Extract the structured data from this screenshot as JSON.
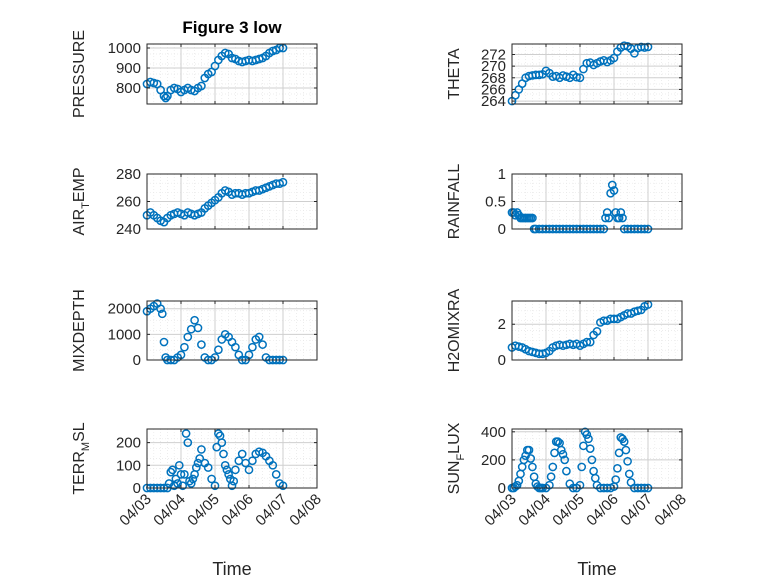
{
  "figure": {
    "title": "Figure 3 low",
    "xlabel": "Time"
  },
  "x_ticks": [
    "04/03",
    "04/04",
    "04/05",
    "04/06",
    "04/07",
    "04/08"
  ],
  "colors": {
    "marker": "#0072BD",
    "axis": "#262626",
    "grid": "#cfcfcf"
  },
  "chart_data": [
    {
      "type": "scatter",
      "ylabel": "PRESSURE",
      "title": "Figure 3 low",
      "xlim": [
        0,
        5
      ],
      "ylim": [
        720,
        1020
      ],
      "yticks": [
        800,
        900,
        1000
      ],
      "x": [
        0,
        0.1,
        0.2,
        0.3,
        0.4,
        0.5,
        0.55,
        0.6,
        0.7,
        0.8,
        0.9,
        1.0,
        1.1,
        1.2,
        1.3,
        1.4,
        1.5,
        1.6,
        1.7,
        1.8,
        1.9,
        2.0,
        2.1,
        2.2,
        2.3,
        2.4,
        2.5,
        2.6,
        2.7,
        2.8,
        2.9,
        3.0,
        3.1,
        3.2,
        3.3,
        3.4,
        3.5,
        3.6,
        3.7,
        3.8,
        3.9,
        4.0
      ],
      "y": [
        820,
        830,
        825,
        820,
        790,
        760,
        750,
        760,
        790,
        800,
        795,
        780,
        790,
        800,
        790,
        785,
        800,
        810,
        850,
        870,
        880,
        910,
        940,
        960,
        975,
        970,
        950,
        945,
        935,
        930,
        935,
        940,
        935,
        940,
        945,
        950,
        960,
        975,
        985,
        990,
        1000,
        1000
      ]
    },
    {
      "type": "scatter",
      "ylabel": "THETA",
      "xlim": [
        0,
        5
      ],
      "ylim": [
        263.5,
        273.8
      ],
      "yticks": [
        264,
        266,
        268,
        270,
        272
      ],
      "x": [
        0,
        0.1,
        0.2,
        0.3,
        0.4,
        0.5,
        0.6,
        0.7,
        0.8,
        0.9,
        1.0,
        1.1,
        1.2,
        1.3,
        1.4,
        1.5,
        1.6,
        1.7,
        1.8,
        1.9,
        2.0,
        2.1,
        2.2,
        2.3,
        2.4,
        2.5,
        2.6,
        2.7,
        2.8,
        2.9,
        3.0,
        3.1,
        3.2,
        3.3,
        3.4,
        3.5,
        3.6,
        3.7,
        3.8,
        3.9,
        4.0
      ],
      "y": [
        264,
        265,
        266,
        267,
        268,
        268.3,
        268.4,
        268.5,
        268.5,
        268.6,
        269.2,
        268.8,
        268.2,
        268.3,
        268,
        268.4,
        268.2,
        268,
        268.5,
        268.1,
        268,
        269.5,
        270.5,
        270.6,
        270.2,
        270.5,
        270.8,
        271,
        270.7,
        271,
        271.4,
        272.5,
        273.2,
        273.5,
        273.4,
        273,
        272.2,
        273.1,
        273.3,
        273.2,
        273.3
      ]
    },
    {
      "type": "scatter",
      "ylabel": "AIR_TEMP",
      "xlim": [
        0,
        5
      ],
      "ylim": [
        240,
        280
      ],
      "yticks": [
        240,
        260,
        280
      ],
      "x": [
        0,
        0.1,
        0.2,
        0.3,
        0.4,
        0.5,
        0.6,
        0.7,
        0.8,
        0.9,
        1.0,
        1.1,
        1.2,
        1.3,
        1.4,
        1.5,
        1.6,
        1.7,
        1.8,
        1.9,
        2.0,
        2.1,
        2.2,
        2.3,
        2.4,
        2.5,
        2.6,
        2.7,
        2.8,
        2.9,
        3.0,
        3.1,
        3.2,
        3.3,
        3.4,
        3.5,
        3.6,
        3.7,
        3.8,
        3.9,
        4.0
      ],
      "y": [
        250,
        252,
        250,
        248,
        246,
        245,
        248,
        250,
        251,
        252,
        251,
        250,
        252,
        251,
        250,
        251,
        252,
        255,
        257,
        259,
        261,
        263,
        266,
        268,
        267,
        265,
        266,
        266,
        265,
        266,
        266,
        267,
        268,
        268,
        269,
        270,
        271,
        272,
        273,
        273,
        274
      ]
    },
    {
      "type": "scatter",
      "ylabel": "RAINFALL",
      "xlim": [
        0,
        5
      ],
      "ylim": [
        0,
        1
      ],
      "yticks": [
        0,
        0.5,
        1
      ],
      "x": [
        0,
        0.05,
        0.1,
        0.15,
        0.2,
        0.25,
        0.3,
        0.35,
        0.4,
        0.45,
        0.5,
        0.55,
        0.6,
        0.65,
        0.7,
        0.8,
        0.9,
        1.0,
        1.1,
        1.2,
        1.3,
        1.4,
        1.5,
        1.6,
        1.7,
        1.8,
        1.9,
        2.0,
        2.1,
        2.2,
        2.3,
        2.4,
        2.5,
        2.6,
        2.7,
        2.75,
        2.8,
        2.85,
        2.9,
        2.95,
        3.0,
        3.05,
        3.1,
        3.15,
        3.2,
        3.25,
        3.3,
        3.4,
        3.5,
        3.6,
        3.7,
        3.8,
        3.9,
        4.0
      ],
      "y": [
        0.3,
        0.3,
        0.25,
        0.3,
        0.25,
        0.2,
        0.2,
        0.2,
        0.2,
        0.2,
        0.2,
        0.2,
        0.2,
        0,
        0,
        0,
        0,
        0,
        0,
        0,
        0,
        0,
        0,
        0,
        0,
        0,
        0,
        0,
        0,
        0,
        0,
        0,
        0,
        0,
        0,
        0.2,
        0.3,
        0.2,
        0.65,
        0.8,
        0.7,
        0.3,
        0.2,
        0.2,
        0.3,
        0.2,
        0,
        0,
        0,
        0,
        0,
        0,
        0,
        0
      ]
    },
    {
      "type": "scatter",
      "ylabel": "MIXDEPTH",
      "xlim": [
        0,
        5
      ],
      "ylim": [
        0,
        2300
      ],
      "yticks": [
        0,
        1000,
        2000
      ],
      "x": [
        0,
        0.1,
        0.2,
        0.3,
        0.4,
        0.45,
        0.5,
        0.55,
        0.6,
        0.7,
        0.8,
        0.9,
        1.0,
        1.1,
        1.2,
        1.3,
        1.4,
        1.5,
        1.6,
        1.7,
        1.8,
        1.9,
        2.0,
        2.1,
        2.2,
        2.3,
        2.4,
        2.5,
        2.6,
        2.7,
        2.8,
        2.9,
        3.0,
        3.1,
        3.2,
        3.3,
        3.4,
        3.5,
        3.6,
        3.7,
        3.8,
        3.9,
        4.0
      ],
      "y": [
        1900,
        2000,
        2100,
        2200,
        2000,
        1800,
        700,
        100,
        0,
        0,
        0,
        100,
        200,
        500,
        900,
        1200,
        1550,
        1250,
        600,
        100,
        0,
        0,
        100,
        400,
        800,
        1000,
        900,
        700,
        500,
        200,
        0,
        0,
        200,
        500,
        800,
        900,
        600,
        100,
        0,
        0,
        0,
        0,
        0
      ]
    },
    {
      "type": "scatter",
      "ylabel": "H2OMIXRA",
      "xlim": [
        0,
        5
      ],
      "ylim": [
        0,
        3.3
      ],
      "yticks": [
        0,
        2
      ],
      "x": [
        0,
        0.1,
        0.2,
        0.3,
        0.4,
        0.5,
        0.6,
        0.7,
        0.8,
        0.9,
        1.0,
        1.1,
        1.2,
        1.3,
        1.4,
        1.5,
        1.6,
        1.7,
        1.8,
        1.9,
        2.0,
        2.1,
        2.2,
        2.3,
        2.4,
        2.5,
        2.6,
        2.7,
        2.8,
        2.9,
        3.0,
        3.1,
        3.2,
        3.3,
        3.4,
        3.5,
        3.6,
        3.7,
        3.8,
        3.9,
        4.0
      ],
      "y": [
        0.7,
        0.8,
        0.75,
        0.7,
        0.6,
        0.5,
        0.45,
        0.4,
        0.35,
        0.35,
        0.4,
        0.5,
        0.7,
        0.8,
        0.85,
        0.8,
        0.85,
        0.9,
        0.85,
        0.9,
        0.8,
        0.9,
        1.0,
        1.0,
        1.4,
        1.6,
        2.1,
        2.2,
        2.2,
        2.3,
        2.3,
        2.3,
        2.4,
        2.5,
        2.6,
        2.6,
        2.7,
        2.75,
        2.8,
        3.0,
        3.1
      ]
    },
    {
      "type": "scatter",
      "ylabel": "TERR_MSL",
      "xlim": [
        0,
        5
      ],
      "ylim": [
        0,
        260
      ],
      "yticks": [
        0,
        100,
        200
      ],
      "x": [
        0,
        0.1,
        0.2,
        0.3,
        0.4,
        0.5,
        0.6,
        0.65,
        0.7,
        0.75,
        0.8,
        0.85,
        0.9,
        0.95,
        1.0,
        1.05,
        1.1,
        1.15,
        1.2,
        1.25,
        1.3,
        1.35,
        1.4,
        1.45,
        1.5,
        1.55,
        1.6,
        1.7,
        1.8,
        1.9,
        2.0,
        2.05,
        2.1,
        2.15,
        2.2,
        2.25,
        2.3,
        2.35,
        2.4,
        2.45,
        2.5,
        2.55,
        2.6,
        2.7,
        2.8,
        2.9,
        3.0,
        3.1,
        3.2,
        3.3,
        3.4,
        3.5,
        3.6,
        3.7,
        3.8,
        3.9,
        4.0
      ],
      "y": [
        0,
        0,
        0,
        0,
        0,
        0,
        0,
        20,
        70,
        80,
        10,
        40,
        20,
        100,
        60,
        10,
        60,
        240,
        200,
        30,
        20,
        40,
        60,
        90,
        110,
        130,
        170,
        110,
        90,
        40,
        10,
        180,
        240,
        230,
        200,
        150,
        100,
        80,
        60,
        40,
        10,
        30,
        80,
        120,
        150,
        110,
        80,
        120,
        150,
        160,
        155,
        140,
        120,
        100,
        60,
        20,
        10
      ]
    },
    {
      "type": "scatter",
      "ylabel": "SUN_FLUX",
      "xlim": [
        0,
        5
      ],
      "ylim": [
        0,
        420
      ],
      "yticks": [
        0,
        200,
        400
      ],
      "x": [
        0,
        0.05,
        0.1,
        0.15,
        0.2,
        0.25,
        0.3,
        0.35,
        0.4,
        0.45,
        0.5,
        0.55,
        0.6,
        0.65,
        0.7,
        0.75,
        0.8,
        0.85,
        0.9,
        1.0,
        1.1,
        1.15,
        1.2,
        1.25,
        1.3,
        1.35,
        1.4,
        1.45,
        1.5,
        1.55,
        1.6,
        1.7,
        1.8,
        1.9,
        2.0,
        2.05,
        2.1,
        2.15,
        2.2,
        2.25,
        2.3,
        2.35,
        2.4,
        2.45,
        2.5,
        2.6,
        2.7,
        2.8,
        2.9,
        3.0,
        3.05,
        3.1,
        3.15,
        3.2,
        3.25,
        3.3,
        3.35,
        3.4,
        3.45,
        3.5,
        3.6,
        3.7,
        3.8,
        3.9,
        4.0
      ],
      "y": [
        0,
        0,
        10,
        20,
        50,
        100,
        150,
        200,
        230,
        270,
        270,
        210,
        150,
        80,
        30,
        10,
        0,
        0,
        0,
        0,
        20,
        80,
        150,
        250,
        330,
        330,
        320,
        270,
        240,
        200,
        120,
        30,
        0,
        0,
        20,
        150,
        300,
        400,
        380,
        350,
        280,
        200,
        120,
        70,
        20,
        0,
        0,
        0,
        0,
        10,
        60,
        140,
        250,
        360,
        350,
        330,
        270,
        190,
        100,
        40,
        0,
        0,
        0,
        0,
        0
      ]
    }
  ]
}
